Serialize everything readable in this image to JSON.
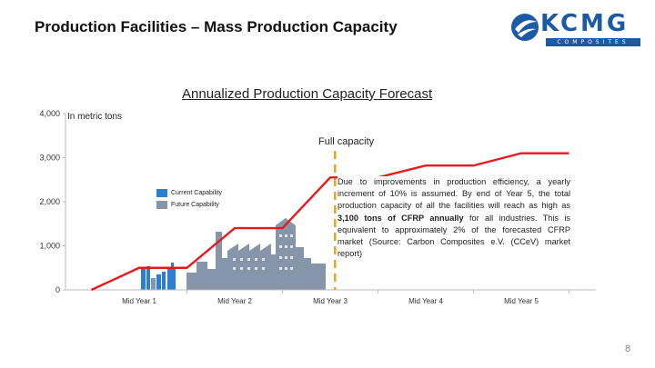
{
  "slide": {
    "title": "Production Facilities – Mass Production Capacity",
    "page_number": "8",
    "logo": {
      "text": "KCMG",
      "subtext": "COMPOSITES",
      "color": "#1c5aa6"
    }
  },
  "chart_data": {
    "type": "line",
    "title": "Annualized Production Capacity Forecast",
    "unit_note": "In metric tons",
    "xlabel": "",
    "ylabel": "",
    "ylim": [
      0,
      4000
    ],
    "yticks": [
      0,
      1000,
      2000,
      3000,
      4000
    ],
    "y_tick_labels": [
      "0",
      "1,000",
      "2,000",
      "3,000",
      "4,000"
    ],
    "categories": [
      "Mid Year 1",
      "Mid Year 2",
      "Mid Year 3",
      "Mid Year 4",
      "Mid Year 5"
    ],
    "series": [
      {
        "color": "#e8191c",
        "x": [
          -0.5,
          0,
          0.5,
          1,
          1.5,
          2,
          2.5,
          3,
          3.5,
          4,
          4.5
        ],
        "values": [
          0,
          500,
          500,
          1400,
          1400,
          2550,
          2550,
          2820,
          2820,
          3100,
          3100
        ]
      }
    ],
    "annotations": [
      {
        "text": "Full capacity",
        "x": 2.05,
        "style": "dashed-vertical",
        "color": "#f0a21c"
      }
    ],
    "grid": false,
    "legend": {
      "position": "middle-left",
      "items": [
        {
          "label": "Current Capability",
          "color": "#2a7fd4"
        },
        {
          "label": "Future Capability",
          "color": "#8795ab"
        }
      ]
    },
    "note": "Due to improvements in production efficiency, a yearly increment of 10% is assumed. By end of Year 5, the total production capacity of all the facilities will reach as high as 3,100 tons of CFRP annually for all industries. This is equivalent to approximately 2% of the forecasted CFRP market (Source: Carbon Composites e.V. (CCeV) market report)",
    "note_bold_phrase": "3,100 tons of CFRP annually"
  }
}
